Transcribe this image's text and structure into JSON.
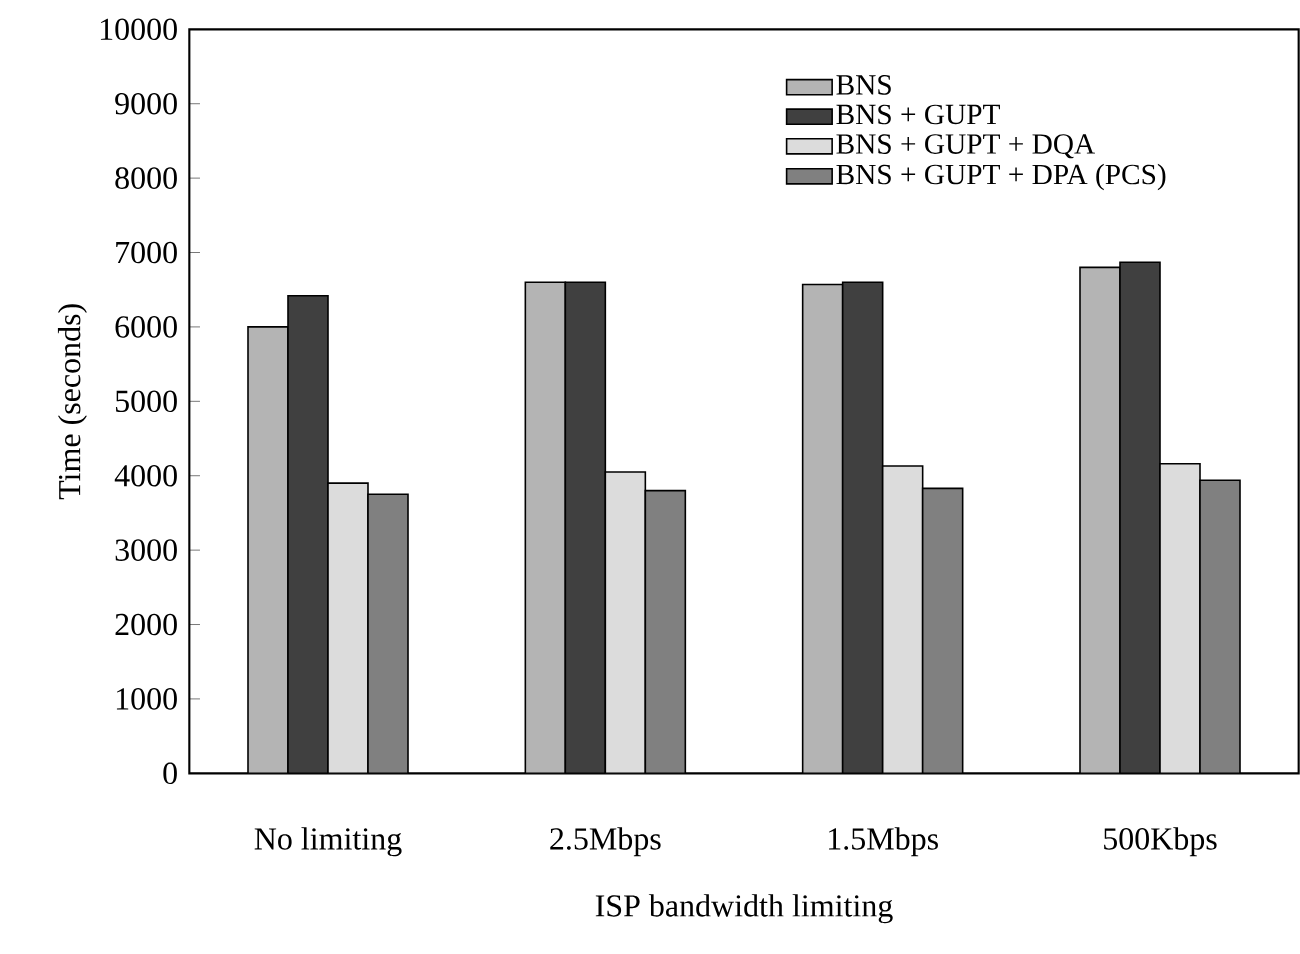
{
  "chart_data": {
    "type": "bar",
    "xlabel": "ISP bandwidth limiting",
    "ylabel": "Time (seconds)",
    "categories": [
      "No limiting",
      "2.5Mbps",
      "1.5Mbps",
      "500Kbps"
    ],
    "series": [
      {
        "name": "BNS",
        "color": "#b4b4b4",
        "values": [
          6000,
          6600,
          6570,
          6800
        ]
      },
      {
        "name": "BNS + GUPT",
        "color": "#404040",
        "values": [
          6420,
          6600,
          6600,
          6870
        ]
      },
      {
        "name": "BNS + GUPT + DQA",
        "color": "#dcdcdc",
        "values": [
          3900,
          4050,
          4130,
          4160
        ]
      },
      {
        "name": "BNS + GUPT + DPA (PCS)",
        "color": "#808080",
        "values": [
          3750,
          3800,
          3830,
          3940
        ]
      }
    ],
    "ylim": [
      0,
      10000
    ],
    "yticks": [
      0,
      1000,
      2000,
      3000,
      4000,
      5000,
      6000,
      7000,
      8000,
      9000,
      10000
    ],
    "grid": false,
    "legend": "top right"
  }
}
